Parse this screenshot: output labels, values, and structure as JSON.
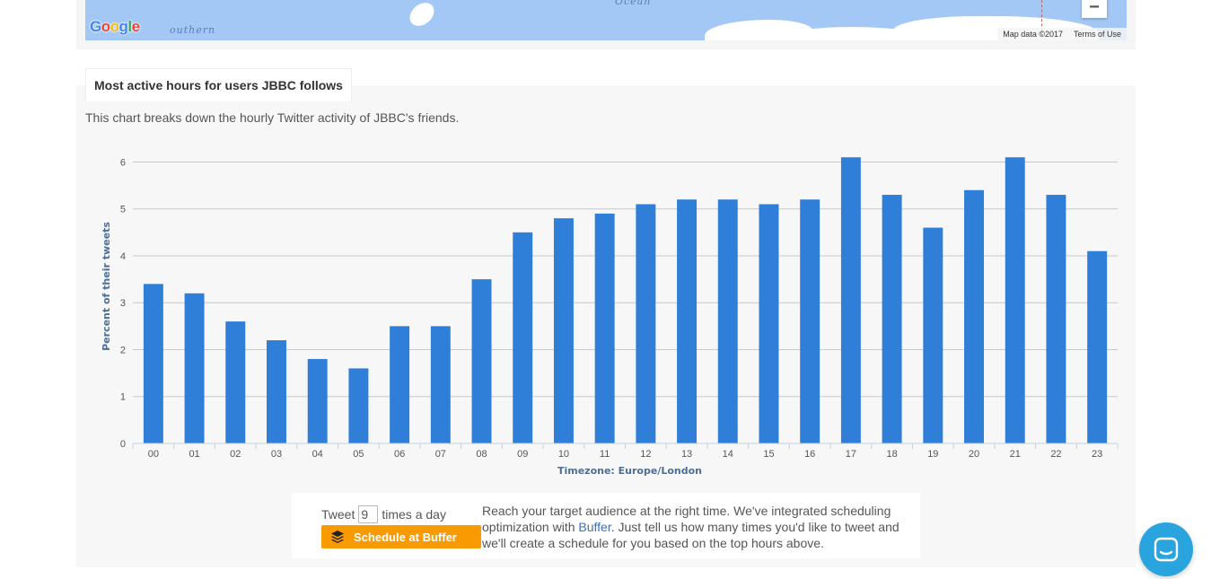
{
  "map": {
    "ocean_label": "Ocean",
    "place_label": "outhern",
    "google_logo": [
      "G",
      "o",
      "o",
      "g",
      "l",
      "e"
    ],
    "google_colors": [
      "#4285f4",
      "#ea4335",
      "#fbbc05",
      "#4285f4",
      "#34a853",
      "#ea4335"
    ],
    "map_data": "Map data ©2017",
    "terms": "Terms of Use",
    "zoom_out": "−"
  },
  "panel": {
    "tab_title": "Most active hours for users JBBC follows",
    "description": "This chart breaks down the hourly Twitter activity of JBBC's friends."
  },
  "chart_data": {
    "type": "bar",
    "categories": [
      "00",
      "01",
      "02",
      "03",
      "04",
      "05",
      "06",
      "07",
      "08",
      "09",
      "10",
      "11",
      "12",
      "13",
      "14",
      "15",
      "16",
      "17",
      "18",
      "19",
      "20",
      "21",
      "22",
      "23"
    ],
    "values": [
      3.4,
      3.2,
      2.6,
      2.2,
      1.8,
      1.6,
      2.5,
      2.5,
      3.5,
      4.5,
      4.8,
      4.9,
      5.1,
      5.2,
      5.2,
      5.1,
      5.2,
      6.1,
      5.3,
      4.6,
      5.4,
      6.1,
      5.3,
      4.1
    ],
    "xlabel": "Timezone: Europe/London",
    "ylabel": "Percent of their tweets",
    "ylim": [
      0,
      6.2
    ],
    "yticks": [
      0,
      1,
      2,
      3,
      4,
      5,
      6
    ],
    "grid": true,
    "bar_color": "#2f7ed8"
  },
  "buffer": {
    "tweet_label": "Tweet",
    "tweet_count": "9",
    "times_label": "times a day",
    "button_label": "Schedule at Buffer",
    "text_before": "Reach your target audience at the right time. We've integrated scheduling optimization with ",
    "link_text": "Buffer",
    "text_after": ". Just tell us how many times you'd like to tweet and we'll create a schedule for you based on the top hours above."
  }
}
